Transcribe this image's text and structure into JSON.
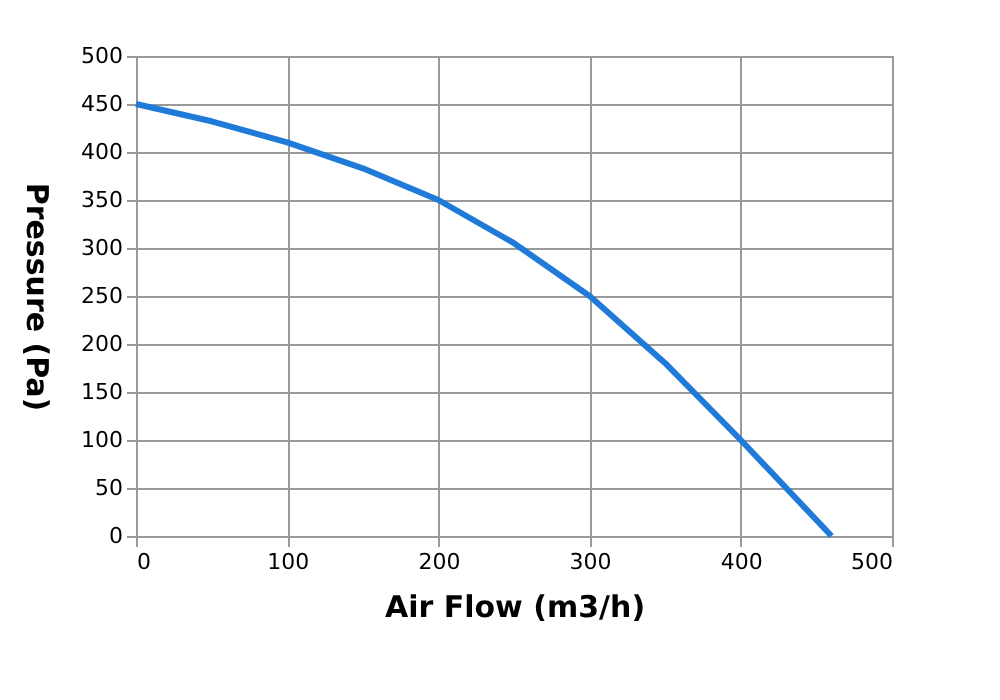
{
  "chart_data": {
    "type": "line",
    "xlabel": "Air Flow (m3/h)",
    "ylabel": "Pressure (Pa)",
    "x": [
      0,
      50,
      100,
      150,
      200,
      250,
      300,
      350,
      400,
      460
    ],
    "series": [
      {
        "color": "#1f7ad8",
        "values": [
          450,
          432,
          410,
          383,
          350,
          305,
          250,
          180,
          100,
          0
        ]
      }
    ],
    "xlim": [
      0,
      500
    ],
    "xticks": [
      0,
      100,
      200,
      300,
      400,
      500
    ],
    "ylim": [
      0,
      500
    ],
    "yticks": [
      0,
      50,
      100,
      150,
      200,
      250,
      300,
      350,
      400,
      450,
      500
    ],
    "grid": true,
    "legend": false,
    "marker": "none",
    "line_style": "solid"
  }
}
